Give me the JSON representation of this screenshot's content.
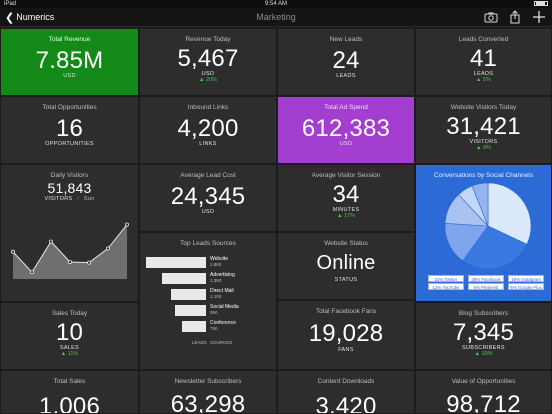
{
  "status_bar": {
    "device": "iPad",
    "time": "9:54 AM"
  },
  "nav": {
    "back_label": "Numerics",
    "title": "Marketing"
  },
  "tiles": {
    "total_revenue": {
      "title": "Total Revenue",
      "value": "7.85M",
      "unit": "USD"
    },
    "revenue_today": {
      "title": "Revenue Today",
      "value": "5,467",
      "unit": "USD",
      "change": "▲ 20%"
    },
    "new_leads": {
      "title": "New Leads",
      "value": "24",
      "unit": "LEADS"
    },
    "leads_converted": {
      "title": "Leads Converted",
      "value": "41",
      "unit": "LEADS",
      "change": "▲ 5%"
    },
    "total_opportunities": {
      "title": "Total Opportunities",
      "value": "16",
      "unit": "OPPORTUNITIES"
    },
    "inbound_links": {
      "title": "Inbound Links",
      "value": "4,200",
      "unit": "LINKS"
    },
    "total_ad_spend": {
      "title": "Total Ad Spend",
      "value": "612,383",
      "unit": "USD"
    },
    "website_visitors_today": {
      "title": "Website Visitors Today",
      "value": "31,421",
      "unit": "VISITORS",
      "change": "▲ 9%"
    },
    "daily_visitors": {
      "title": "Daily Visitors",
      "value": "51,843",
      "unit": "VISITORS",
      "day": "Sun"
    },
    "average_lead_cost": {
      "title": "Average Lead Cost",
      "value": "24,345",
      "unit": "USD"
    },
    "average_visitor_session": {
      "title": "Average Visitor Session",
      "value": "34",
      "unit": "MINUTES",
      "change": "▲ 17%"
    },
    "social_channels": {
      "title": "Conversations by Social Channels"
    },
    "top_leads_sources": {
      "title": "Top Leads Sources",
      "col1": "LEADS",
      "col2": "SOURCES"
    },
    "website_status": {
      "title": "Website Status",
      "value": "Online",
      "unit": "STATUS"
    },
    "sales_today": {
      "title": "Sales Today",
      "value": "10",
      "unit": "SALES",
      "change": "▲ 11%"
    },
    "total_facebook_fans": {
      "title": "Total Facebook Fans",
      "value": "19,028",
      "unit": "FANS"
    },
    "blog_subscribers": {
      "title": "Blog Subscribers",
      "value": "7,345",
      "unit": "SUBSCRIBERS",
      "change": "▲ 10%"
    },
    "total_sales": {
      "title": "Total Sales",
      "value": "1,006"
    },
    "newsletter_subscribers": {
      "title": "Newsletter Subscribers",
      "value": "63,298"
    },
    "content_downloads": {
      "title": "Content Downloads",
      "value": "3,420"
    },
    "value_of_opportunities": {
      "title": "Value of Opportunities",
      "value": "98,712"
    }
  },
  "funnel": [
    {
      "name": "Website",
      "value": "1,860",
      "v": 1860
    },
    {
      "name": "Advertising",
      "value": "1,350",
      "v": 1350
    },
    {
      "name": "Direct Mail",
      "value": "1,100",
      "v": 1100
    },
    {
      "name": "Social Media",
      "value": "950",
      "v": 950
    },
    {
      "name": "Conference",
      "value": "750",
      "v": 750
    }
  ],
  "social_legend": [
    {
      "label": "32% Twitter",
      "pct": 32
    },
    {
      "label": "28% Facebook",
      "pct": 28
    },
    {
      "label": "16% Instagram",
      "pct": 16
    },
    {
      "label": "12% YouTube",
      "pct": 12
    },
    {
      "label": "6% Pinterest",
      "pct": 6
    },
    {
      "label": "6% Google Plus",
      "pct": 6
    }
  ],
  "daily_series": [
    40,
    10,
    55,
    25,
    24,
    45,
    80
  ],
  "icons": {
    "camera": "camera-icon",
    "share": "share-icon",
    "add": "plus-icon"
  },
  "colors": {
    "green": "#138a18",
    "purple": "#a33ed0",
    "blue": "#2c6bd6",
    "up": "#3bd13b"
  }
}
